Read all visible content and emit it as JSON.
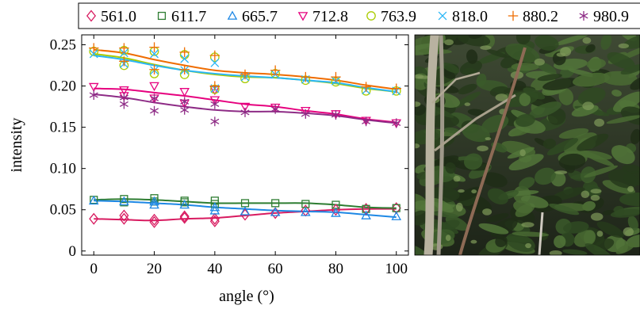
{
  "chart_data": {
    "type": "scatter",
    "xlabel": "angle (°)",
    "ylabel": "intensity",
    "xlim": [
      -4,
      104
    ],
    "ylim": [
      -0.005,
      0.262
    ],
    "x_ticks": [
      0,
      20,
      40,
      60,
      80,
      100
    ],
    "y_ticks": [
      0,
      0.05,
      0.1,
      0.15,
      0.2,
      0.25
    ],
    "y_tick_labels": [
      "0",
      "0.05",
      "0.10",
      "0.15",
      "0.20",
      "0.25"
    ],
    "legend_position": "top",
    "series": [
      {
        "name": "561.0",
        "color": "#d81b60",
        "marker": "diamond",
        "points": [
          [
            0,
            0.039
          ],
          [
            10,
            0.039
          ],
          [
            10,
            0.043
          ],
          [
            20,
            0.035
          ],
          [
            20,
            0.038
          ],
          [
            30,
            0.04
          ],
          [
            30,
            0.042
          ],
          [
            40,
            0.036
          ],
          [
            40,
            0.039
          ],
          [
            50,
            0.044
          ],
          [
            60,
            0.046
          ],
          [
            70,
            0.049
          ],
          [
            80,
            0.05
          ],
          [
            90,
            0.051
          ],
          [
            100,
            0.052
          ]
        ],
        "fit": [
          [
            0,
            0.039
          ],
          [
            10,
            0.038
          ],
          [
            20,
            0.037
          ],
          [
            30,
            0.039
          ],
          [
            40,
            0.04
          ],
          [
            50,
            0.043
          ],
          [
            60,
            0.046
          ],
          [
            70,
            0.048
          ],
          [
            80,
            0.05
          ],
          [
            90,
            0.051
          ],
          [
            100,
            0.051
          ]
        ]
      },
      {
        "name": "611.7",
        "color": "#2e7d32",
        "marker": "square",
        "points": [
          [
            0,
            0.062
          ],
          [
            10,
            0.059
          ],
          [
            10,
            0.063
          ],
          [
            20,
            0.06
          ],
          [
            20,
            0.064
          ],
          [
            30,
            0.059
          ],
          [
            30,
            0.061
          ],
          [
            40,
            0.057
          ],
          [
            40,
            0.061
          ],
          [
            50,
            0.058
          ],
          [
            60,
            0.058
          ],
          [
            70,
            0.057
          ],
          [
            80,
            0.056
          ],
          [
            90,
            0.051
          ],
          [
            100,
            0.052
          ]
        ],
        "fit": [
          [
            0,
            0.062
          ],
          [
            10,
            0.063
          ],
          [
            20,
            0.062
          ],
          [
            30,
            0.06
          ],
          [
            40,
            0.058
          ],
          [
            50,
            0.058
          ],
          [
            60,
            0.058
          ],
          [
            70,
            0.058
          ],
          [
            80,
            0.056
          ],
          [
            90,
            0.053
          ],
          [
            100,
            0.052
          ]
        ]
      },
      {
        "name": "665.7",
        "color": "#1e88e5",
        "marker": "triangle-up",
        "points": [
          [
            0,
            0.061
          ],
          [
            10,
            0.06
          ],
          [
            20,
            0.056
          ],
          [
            20,
            0.06
          ],
          [
            30,
            0.056
          ],
          [
            40,
            0.049
          ],
          [
            40,
            0.053
          ],
          [
            50,
            0.048
          ],
          [
            60,
            0.047
          ],
          [
            70,
            0.047
          ],
          [
            80,
            0.046
          ],
          [
            90,
            0.043
          ],
          [
            100,
            0.042
          ]
        ],
        "fit": [
          [
            0,
            0.061
          ],
          [
            10,
            0.06
          ],
          [
            20,
            0.058
          ],
          [
            30,
            0.056
          ],
          [
            40,
            0.053
          ],
          [
            50,
            0.051
          ],
          [
            60,
            0.049
          ],
          [
            70,
            0.048
          ],
          [
            80,
            0.047
          ],
          [
            90,
            0.044
          ],
          [
            100,
            0.041
          ]
        ]
      },
      {
        "name": "712.8",
        "color": "#e6007e",
        "marker": "triangle-down",
        "points": [
          [
            0,
            0.199
          ],
          [
            10,
            0.188
          ],
          [
            10,
            0.195
          ],
          [
            20,
            0.185
          ],
          [
            20,
            0.2
          ],
          [
            30,
            0.179
          ],
          [
            30,
            0.193
          ],
          [
            40,
            0.183
          ],
          [
            40,
            0.195
          ],
          [
            50,
            0.175
          ],
          [
            60,
            0.174
          ],
          [
            70,
            0.17
          ],
          [
            80,
            0.166
          ],
          [
            90,
            0.158
          ],
          [
            100,
            0.155
          ]
        ],
        "fit": [
          [
            0,
            0.197
          ],
          [
            10,
            0.196
          ],
          [
            20,
            0.192
          ],
          [
            30,
            0.188
          ],
          [
            40,
            0.183
          ],
          [
            50,
            0.178
          ],
          [
            60,
            0.175
          ],
          [
            70,
            0.17
          ],
          [
            80,
            0.166
          ],
          [
            90,
            0.16
          ],
          [
            100,
            0.156
          ]
        ]
      },
      {
        "name": "763.9",
        "color": "#aacc00",
        "marker": "circle",
        "points": [
          [
            0,
            0.242
          ],
          [
            10,
            0.225
          ],
          [
            10,
            0.243
          ],
          [
            20,
            0.215
          ],
          [
            20,
            0.242
          ],
          [
            30,
            0.214
          ],
          [
            30,
            0.238
          ],
          [
            40,
            0.196
          ],
          [
            40,
            0.235
          ],
          [
            50,
            0.209
          ],
          [
            60,
            0.215
          ],
          [
            70,
            0.207
          ],
          [
            80,
            0.205
          ],
          [
            90,
            0.194
          ],
          [
            100,
            0.194
          ]
        ],
        "fit": [
          [
            0,
            0.239
          ],
          [
            10,
            0.234
          ],
          [
            20,
            0.226
          ],
          [
            30,
            0.219
          ],
          [
            40,
            0.214
          ],
          [
            50,
            0.211
          ],
          [
            60,
            0.21
          ],
          [
            70,
            0.207
          ],
          [
            80,
            0.203
          ],
          [
            90,
            0.197
          ],
          [
            100,
            0.193
          ]
        ]
      },
      {
        "name": "818.0",
        "color": "#29b6f6",
        "marker": "x",
        "points": [
          [
            0,
            0.239
          ],
          [
            10,
            0.227
          ],
          [
            10,
            0.24
          ],
          [
            20,
            0.219
          ],
          [
            20,
            0.239
          ],
          [
            30,
            0.219
          ],
          [
            30,
            0.233
          ],
          [
            40,
            0.197
          ],
          [
            40,
            0.228
          ],
          [
            50,
            0.211
          ],
          [
            60,
            0.214
          ],
          [
            70,
            0.208
          ],
          [
            80,
            0.206
          ],
          [
            90,
            0.195
          ],
          [
            100,
            0.194
          ]
        ],
        "fit": [
          [
            0,
            0.237
          ],
          [
            10,
            0.232
          ],
          [
            20,
            0.225
          ],
          [
            30,
            0.219
          ],
          [
            40,
            0.215
          ],
          [
            50,
            0.212
          ],
          [
            60,
            0.21
          ],
          [
            70,
            0.207
          ],
          [
            80,
            0.204
          ],
          [
            90,
            0.198
          ],
          [
            100,
            0.193
          ]
        ]
      },
      {
        "name": "880.2",
        "color": "#ef6c00",
        "marker": "plus",
        "points": [
          [
            0,
            0.246
          ],
          [
            10,
            0.23
          ],
          [
            10,
            0.246
          ],
          [
            20,
            0.22
          ],
          [
            20,
            0.247
          ],
          [
            30,
            0.22
          ],
          [
            30,
            0.241
          ],
          [
            40,
            0.2
          ],
          [
            40,
            0.237
          ],
          [
            50,
            0.214
          ],
          [
            60,
            0.219
          ],
          [
            70,
            0.211
          ],
          [
            80,
            0.211
          ],
          [
            90,
            0.199
          ],
          [
            100,
            0.197
          ]
        ],
        "fit": [
          [
            0,
            0.244
          ],
          [
            10,
            0.24
          ],
          [
            20,
            0.232
          ],
          [
            30,
            0.225
          ],
          [
            40,
            0.219
          ],
          [
            50,
            0.216
          ],
          [
            60,
            0.214
          ],
          [
            70,
            0.211
          ],
          [
            80,
            0.207
          ],
          [
            90,
            0.201
          ],
          [
            100,
            0.196
          ]
        ]
      },
      {
        "name": "980.9",
        "color": "#8e2c86",
        "marker": "asterisk",
        "points": [
          [
            0,
            0.189
          ],
          [
            10,
            0.178
          ],
          [
            10,
            0.186
          ],
          [
            20,
            0.17
          ],
          [
            20,
            0.185
          ],
          [
            30,
            0.171
          ],
          [
            30,
            0.181
          ],
          [
            40,
            0.157
          ],
          [
            40,
            0.178
          ],
          [
            50,
            0.168
          ],
          [
            60,
            0.172
          ],
          [
            70,
            0.166
          ],
          [
            80,
            0.165
          ],
          [
            90,
            0.157
          ],
          [
            100,
            0.155
          ]
        ],
        "fit": [
          [
            0,
            0.19
          ],
          [
            10,
            0.186
          ],
          [
            20,
            0.18
          ],
          [
            30,
            0.175
          ],
          [
            40,
            0.171
          ],
          [
            50,
            0.169
          ],
          [
            60,
            0.169
          ],
          [
            70,
            0.167
          ],
          [
            80,
            0.164
          ],
          [
            90,
            0.159
          ],
          [
            100,
            0.155
          ]
        ]
      }
    ]
  },
  "photo": {
    "alt": "forest-photo"
  }
}
